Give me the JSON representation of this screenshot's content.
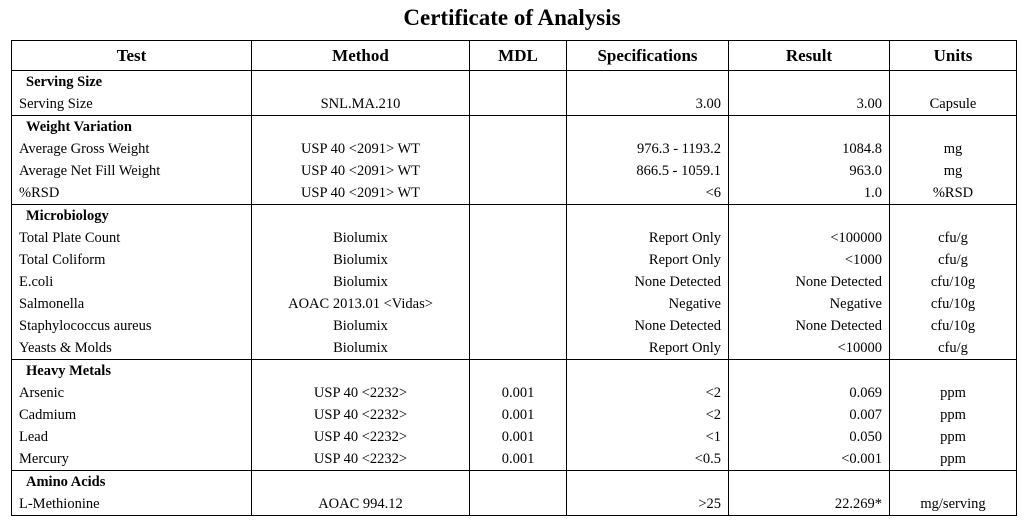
{
  "title": "Certificate of Analysis",
  "headers": {
    "test": "Test",
    "method": "Method",
    "mdl": "MDL",
    "specifications": "Specifications",
    "result": "Result",
    "units": "Units"
  },
  "sections": [
    {
      "name": "Serving Size",
      "rows": [
        {
          "test": "Serving Size",
          "method": "SNL.MA.210",
          "mdl": "",
          "spec": "3.00",
          "result": "3.00",
          "units": "Capsule"
        }
      ]
    },
    {
      "name": "Weight Variation",
      "rows": [
        {
          "test": "Average Gross Weight",
          "method": "USP 40 <2091> WT",
          "mdl": "",
          "spec": "976.3 - 1193.2",
          "result": "1084.8",
          "units": "mg"
        },
        {
          "test": "Average Net Fill Weight",
          "method": "USP 40 <2091> WT",
          "mdl": "",
          "spec": "866.5 - 1059.1",
          "result": "963.0",
          "units": "mg"
        },
        {
          "test": "%RSD",
          "method": "USP 40 <2091> WT",
          "mdl": "",
          "spec": "<6",
          "result": "1.0",
          "units": "%RSD"
        }
      ]
    },
    {
      "name": "Microbiology",
      "rows": [
        {
          "test": "Total Plate Count",
          "method": "Biolumix",
          "mdl": "",
          "spec": "Report Only",
          "result": "<100000",
          "units": "cfu/g"
        },
        {
          "test": "Total Coliform",
          "method": "Biolumix",
          "mdl": "",
          "spec": "Report Only",
          "result": "<1000",
          "units": "cfu/g"
        },
        {
          "test": "E.coli",
          "method": "Biolumix",
          "mdl": "",
          "spec": "None Detected",
          "result": "None Detected",
          "units": "cfu/10g"
        },
        {
          "test": "Salmonella",
          "method": "AOAC 2013.01 <Vidas>",
          "mdl": "",
          "spec": "Negative",
          "result": "Negative",
          "units": "cfu/10g"
        },
        {
          "test": "Staphylococcus aureus",
          "method": "Biolumix",
          "mdl": "",
          "spec": "None Detected",
          "result": "None Detected",
          "units": "cfu/10g"
        },
        {
          "test": "Yeasts & Molds",
          "method": "Biolumix",
          "mdl": "",
          "spec": "Report Only",
          "result": "<10000",
          "units": "cfu/g"
        }
      ]
    },
    {
      "name": "Heavy Metals",
      "rows": [
        {
          "test": "Arsenic",
          "method": "USP 40 <2232>",
          "mdl": "0.001",
          "spec": "<2",
          "result": "0.069",
          "units": "ppm"
        },
        {
          "test": "Cadmium",
          "method": "USP 40 <2232>",
          "mdl": "0.001",
          "spec": "<2",
          "result": "0.007",
          "units": "ppm"
        },
        {
          "test": "Lead",
          "method": "USP 40 <2232>",
          "mdl": "0.001",
          "spec": "<1",
          "result": "0.050",
          "units": "ppm"
        },
        {
          "test": "Mercury",
          "method": "USP 40 <2232>",
          "mdl": "0.001",
          "spec": "<0.5",
          "result": "<0.001",
          "units": "ppm"
        }
      ]
    },
    {
      "name": "Amino Acids",
      "rows": [
        {
          "test": "L-Methionine",
          "method": "AOAC 994.12",
          "mdl": "",
          "spec": ">25",
          "result": "22.269*",
          "units": "mg/serving"
        }
      ]
    }
  ]
}
